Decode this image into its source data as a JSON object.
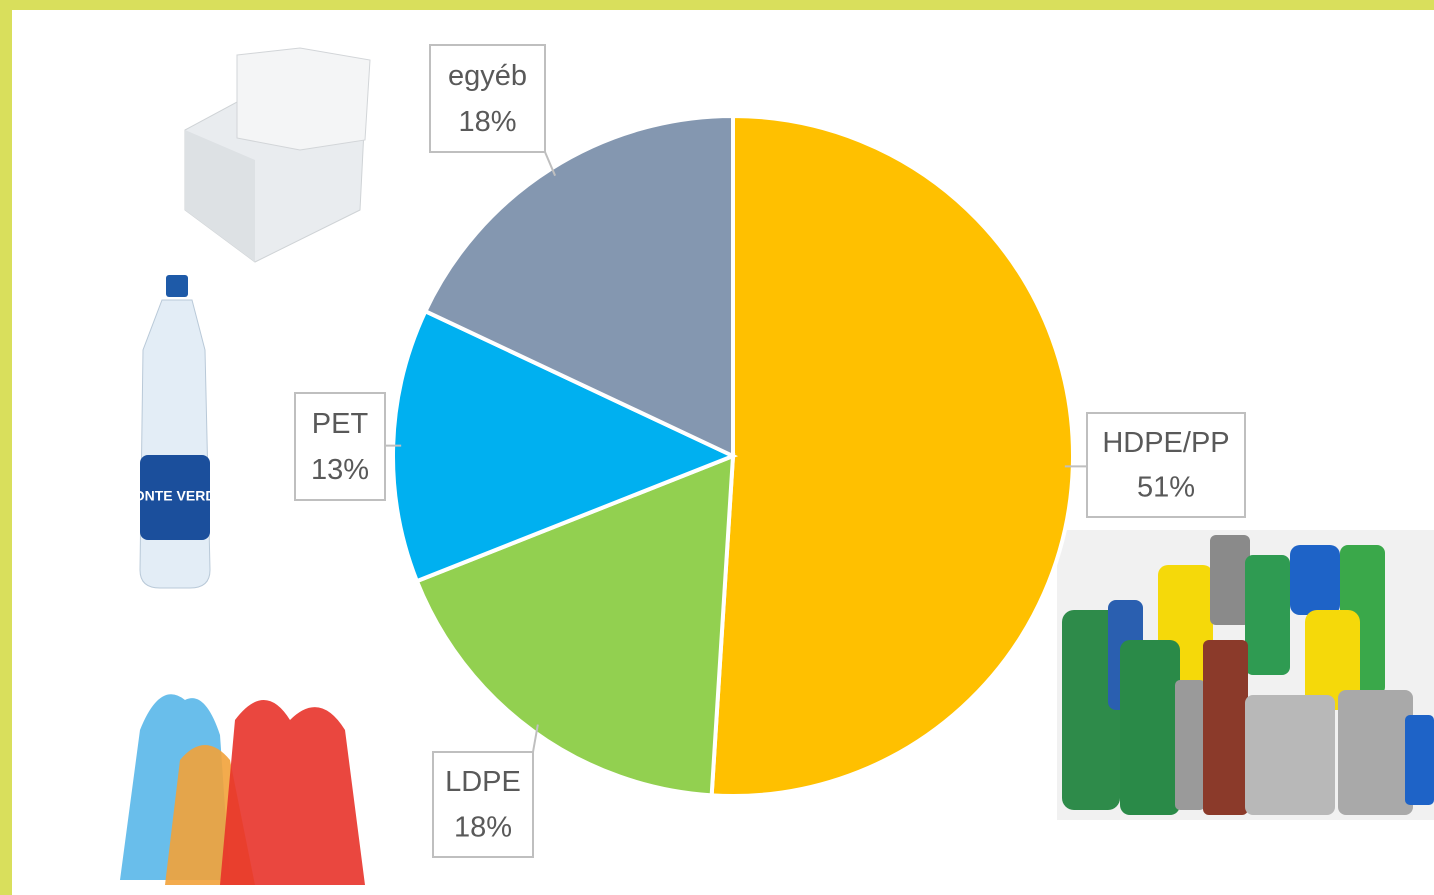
{
  "chart_data": {
    "type": "pie",
    "categories": [
      "HDPE/PP",
      "LDPE",
      "PET",
      "egyéb"
    ],
    "values": [
      51,
      18,
      13,
      18
    ],
    "value_labels": [
      "51%",
      "18%",
      "13%",
      "18%"
    ],
    "colors": [
      "#ffc000",
      "#92d050",
      "#00b0f0",
      "#8497b0"
    ]
  }
}
